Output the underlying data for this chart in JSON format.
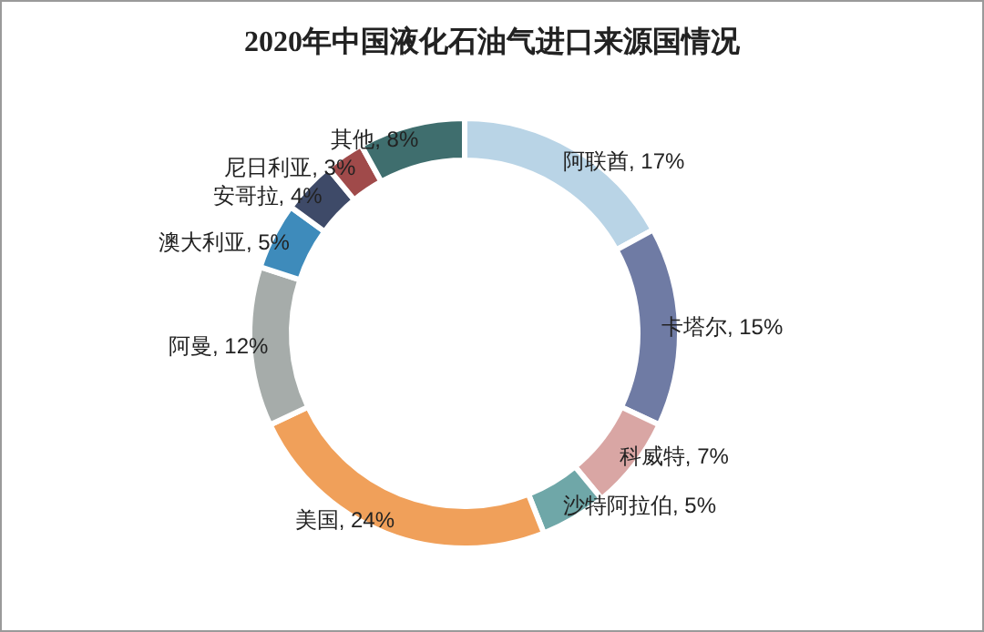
{
  "chart_data": {
    "type": "donut",
    "title": "2020年中国液化石油气进口来源国情况",
    "categories": [
      "阿联酋",
      "卡塔尔",
      "科威特",
      "沙特阿拉伯",
      "美国",
      "阿曼",
      "澳大利亚",
      "安哥拉",
      "尼日利亚",
      "其他"
    ],
    "values": [
      17,
      15,
      7,
      5,
      24,
      12,
      5,
      4,
      3,
      8
    ],
    "colors": [
      "#b9d4e6",
      "#6f7ba4",
      "#d9a6a4",
      "#6fa7a8",
      "#f0a05a",
      "#a6acaa",
      "#3e8bbb",
      "#3e4a68",
      "#a04a4a",
      "#3f6e6e"
    ],
    "value_labels": [
      ", 17%",
      ", 15%",
      ", 7%",
      ", 5%",
      ", 24%",
      ", 12%",
      ", 5%",
      ", 4%",
      ", 3%",
      ", 8%"
    ]
  }
}
